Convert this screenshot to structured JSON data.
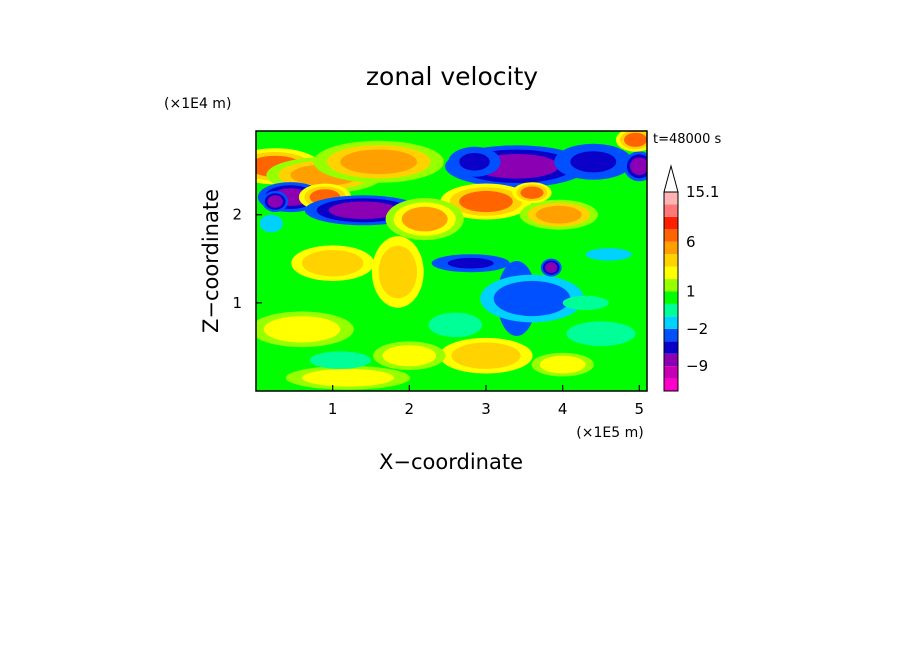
{
  "chart_data": {
    "type": "heatmap",
    "title": "zonal velocity",
    "xlabel": "X−coordinate",
    "ylabel": "Z−coordinate",
    "x_unit": "(×1E5 m)",
    "y_unit": "(×1E4 m)",
    "time_label": "t=48000 s",
    "xlim": [
      0,
      5.1
    ],
    "ylim": [
      0,
      2.95
    ],
    "x_ticks": [
      1,
      2,
      3,
      4,
      5
    ],
    "y_ticks": [
      1,
      2
    ],
    "colorbar": {
      "levels": [
        -15,
        -12,
        -9,
        -6,
        -4,
        -2,
        -1,
        0,
        1,
        2,
        3,
        4,
        6,
        8,
        10,
        12,
        15.1
      ],
      "colors": [
        "#ff00cc",
        "#c800b4",
        "#8c00b4",
        "#0a00c8",
        "#0050ff",
        "#00d2ff",
        "#00ff96",
        "#00ff00",
        "#96ff00",
        "#ffff00",
        "#ffd200",
        "#ffa000",
        "#ff6400",
        "#ff1e00",
        "#ff7878",
        "#ffb4b4"
      ],
      "tick_labels": [
        {
          "value": 15.1,
          "label": "15.1"
        },
        {
          "value": 6,
          "label": "6"
        },
        {
          "value": 1,
          "label": "1"
        },
        {
          "value": -2,
          "label": "−2"
        },
        {
          "value": -9,
          "label": "−9"
        }
      ]
    },
    "features": [
      {
        "x": 0.25,
        "z": 2.55,
        "w": 0.35,
        "h": 0.12,
        "v": 6
      },
      {
        "x": 0.9,
        "z": 2.45,
        "w": 0.45,
        "h": 0.12,
        "v": 5
      },
      {
        "x": 1.6,
        "z": 2.6,
        "w": 0.5,
        "h": 0.14,
        "v": 5
      },
      {
        "x": 0.45,
        "z": 2.2,
        "w": 0.25,
        "h": 0.1,
        "v": -7
      },
      {
        "x": 0.9,
        "z": 2.2,
        "w": 0.2,
        "h": 0.09,
        "v": 6
      },
      {
        "x": 1.4,
        "z": 2.05,
        "w": 0.45,
        "h": 0.1,
        "v": -7
      },
      {
        "x": 0.25,
        "z": 2.15,
        "w": 0.1,
        "h": 0.07,
        "v": -7
      },
      {
        "x": 3.4,
        "z": 2.55,
        "w": 0.55,
        "h": 0.14,
        "v": -8
      },
      {
        "x": 2.85,
        "z": 2.6,
        "w": 0.2,
        "h": 0.1,
        "v": -6
      },
      {
        "x": 4.4,
        "z": 2.6,
        "w": 0.3,
        "h": 0.12,
        "v": -6
      },
      {
        "x": 5.0,
        "z": 2.55,
        "w": 0.12,
        "h": 0.1,
        "v": -7
      },
      {
        "x": 4.95,
        "z": 2.85,
        "w": 0.15,
        "h": 0.08,
        "v": 6
      },
      {
        "x": 3.0,
        "z": 2.15,
        "w": 0.35,
        "h": 0.12,
        "v": 6
      },
      {
        "x": 3.95,
        "z": 2.0,
        "w": 0.3,
        "h": 0.1,
        "v": 5
      },
      {
        "x": 3.6,
        "z": 2.25,
        "w": 0.15,
        "h": 0.07,
        "v": 6
      },
      {
        "x": 2.8,
        "z": 1.45,
        "w": 0.3,
        "h": 0.06,
        "v": -6
      },
      {
        "x": 3.4,
        "z": 1.05,
        "w": 0.15,
        "h": 0.25,
        "v": -6
      },
      {
        "x": 3.6,
        "z": 1.05,
        "w": 0.5,
        "h": 0.2,
        "v": -3
      },
      {
        "x": 4.6,
        "z": 1.55,
        "w": 0.3,
        "h": 0.07,
        "v": -2
      },
      {
        "x": 3.85,
        "z": 1.4,
        "w": 0.08,
        "h": 0.06,
        "v": -7
      },
      {
        "x": 4.3,
        "z": 1.0,
        "w": 0.3,
        "h": 0.08,
        "v": -1
      },
      {
        "x": 1.85,
        "z": 1.35,
        "w": 0.25,
        "h": 0.3,
        "v": 3.5
      },
      {
        "x": 1.0,
        "z": 1.45,
        "w": 0.4,
        "h": 0.15,
        "v": 3.5
      },
      {
        "x": 3.0,
        "z": 0.4,
        "w": 0.45,
        "h": 0.15,
        "v": 3.5
      },
      {
        "x": 2.0,
        "z": 0.4,
        "w": 0.35,
        "h": 0.12,
        "v": 2.5
      },
      {
        "x": 0.6,
        "z": 0.7,
        "w": 0.5,
        "h": 0.15,
        "v": 2.5
      },
      {
        "x": 4.0,
        "z": 0.3,
        "w": 0.3,
        "h": 0.1,
        "v": 2.5
      },
      {
        "x": 1.2,
        "z": 0.15,
        "w": 0.6,
        "h": 0.1,
        "v": 2.5
      },
      {
        "x": 2.6,
        "z": 0.75,
        "w": 0.35,
        "h": 0.14,
        "v": -0.5
      },
      {
        "x": 4.5,
        "z": 0.65,
        "w": 0.45,
        "h": 0.14,
        "v": -0.5
      },
      {
        "x": 1.1,
        "z": 0.35,
        "w": 0.4,
        "h": 0.1,
        "v": -0.5
      },
      {
        "x": 0.2,
        "z": 1.9,
        "w": 0.15,
        "h": 0.1,
        "v": -1.5
      },
      {
        "x": 2.2,
        "z": 1.95,
        "w": 0.3,
        "h": 0.14,
        "v": 4.5
      },
      {
        "x": 0.7,
        "z": 1.75,
        "w": 0.3,
        "h": 0.1,
        "v": 0.5
      }
    ]
  }
}
